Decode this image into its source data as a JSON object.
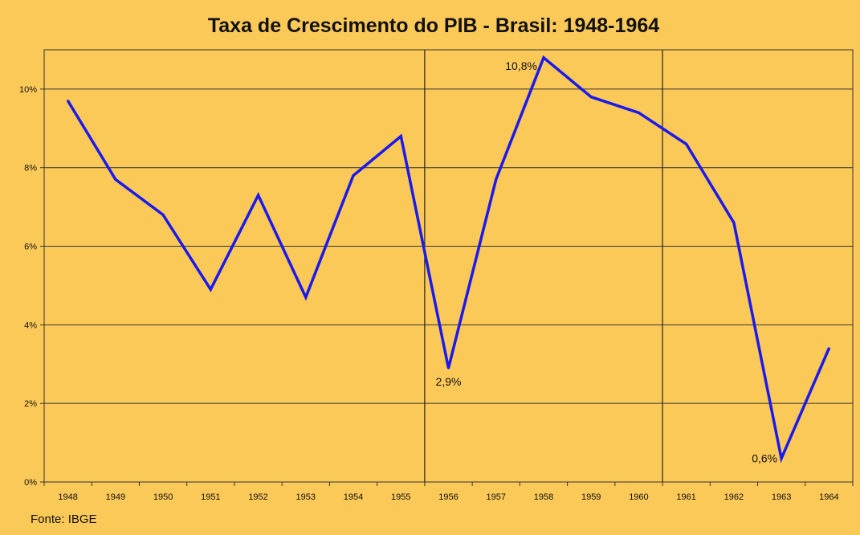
{
  "chart_data": {
    "type": "line",
    "title": "Taxa de Crescimento do PIB - Brasil: 1948-1964",
    "xlabel": "",
    "ylabel": "",
    "x": [
      "1948",
      "1949",
      "1950",
      "1951",
      "1952",
      "1953",
      "1954",
      "1955",
      "1956",
      "1957",
      "1958",
      "1959",
      "1960",
      "1961",
      "1962",
      "1963",
      "1964"
    ],
    "series": [
      {
        "values": [
          9.7,
          7.7,
          6.8,
          4.9,
          7.3,
          4.7,
          7.8,
          8.8,
          2.9,
          7.7,
          10.8,
          9.8,
          9.4,
          8.6,
          6.6,
          0.6,
          3.4
        ]
      }
    ],
    "ylim": [
      0,
      11
    ],
    "yticks": [
      0,
      2,
      4,
      6,
      8,
      10
    ],
    "ytick_labels": [
      "0%",
      "2%",
      "4%",
      "6%",
      "8%",
      "10%"
    ],
    "grid": true,
    "line_color": "#1a1aee",
    "background_color": "#fbc957",
    "annotations": [
      {
        "x": "1956",
        "text": "2,9%"
      },
      {
        "x": "1958",
        "text": "10,8%"
      },
      {
        "x": "1963",
        "text": "0,6%"
      }
    ],
    "vertical_markers": [
      "1955-1956",
      "1960-1961"
    ],
    "source": "Fonte: IBGE"
  }
}
